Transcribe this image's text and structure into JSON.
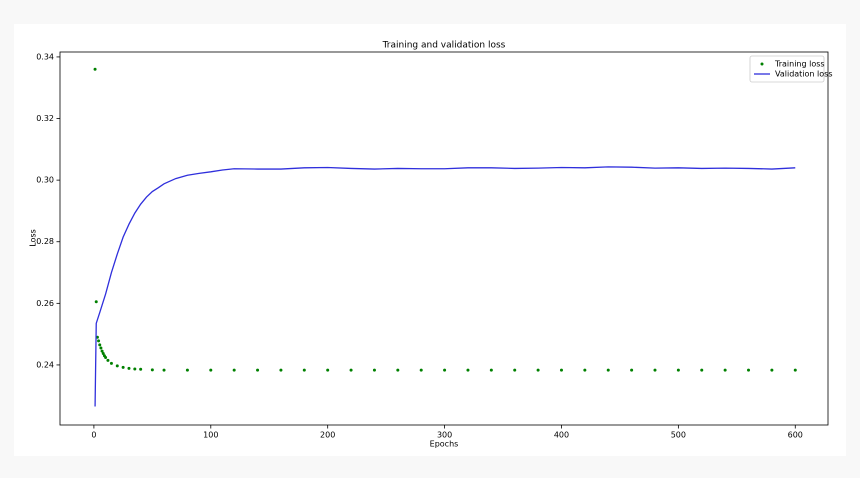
{
  "chart_data": {
    "type": "line-scatter",
    "title": "Training and validation loss",
    "x_label": "Epochs",
    "y_label": "Loss",
    "xlim": [
      -29,
      628
    ],
    "ylim": [
      0.2205,
      0.3416
    ],
    "xticks": [
      0,
      100,
      200,
      300,
      400,
      500,
      600
    ],
    "yticks": [
      0.24,
      0.26,
      0.28,
      {
        "value": 0.3,
        "label": "0.30"
      },
      0.32,
      0.34
    ],
    "legend": "upper right",
    "series": [
      {
        "name": "Training loss",
        "style": "dots",
        "color": "#008000",
        "x": [
          1,
          2,
          3,
          4,
          5,
          6,
          7,
          8,
          9,
          10,
          12,
          15,
          20,
          25,
          30,
          35,
          40,
          50,
          60,
          80,
          100,
          120,
          140,
          160,
          180,
          200,
          220,
          240,
          260,
          280,
          300,
          320,
          340,
          360,
          380,
          400,
          420,
          440,
          460,
          480,
          500,
          520,
          540,
          560,
          580,
          600
        ],
        "values": [
          0.336,
          0.2605,
          0.249,
          0.2478,
          0.2465,
          0.2455,
          0.2445,
          0.2437,
          0.243,
          0.2424,
          0.2415,
          0.2405,
          0.2397,
          0.2392,
          0.2389,
          0.2387,
          0.2386,
          0.2384,
          0.2383,
          0.2383,
          0.2383,
          0.2383,
          0.2383,
          0.2383,
          0.2383,
          0.2383,
          0.2383,
          0.2383,
          0.2383,
          0.2383,
          0.2383,
          0.2383,
          0.2383,
          0.2383,
          0.2383,
          0.2383,
          0.2383,
          0.2383,
          0.2383,
          0.2383,
          0.2383,
          0.2383,
          0.2383,
          0.2383,
          0.2383,
          0.2383
        ]
      },
      {
        "name": "Validation loss",
        "style": "line",
        "color": "#2f2fdc",
        "x": [
          1,
          2,
          5,
          10,
          15,
          20,
          25,
          30,
          35,
          40,
          45,
          50,
          55,
          60,
          70,
          80,
          90,
          100,
          110,
          120,
          140,
          160,
          180,
          200,
          220,
          240,
          260,
          280,
          300,
          320,
          340,
          360,
          380,
          400,
          420,
          440,
          460,
          480,
          500,
          520,
          540,
          560,
          580,
          600
        ],
        "values": [
          0.2265,
          0.2535,
          0.257,
          0.263,
          0.27,
          0.276,
          0.2815,
          0.2857,
          0.2893,
          0.2922,
          0.2945,
          0.2963,
          0.2975,
          0.2988,
          0.3005,
          0.3016,
          0.3022,
          0.3027,
          0.3033,
          0.3037,
          0.3036,
          0.3036,
          0.304,
          0.3041,
          0.3038,
          0.3036,
          0.3038,
          0.3037,
          0.3037,
          0.304,
          0.304,
          0.3038,
          0.3039,
          0.3041,
          0.304,
          0.3043,
          0.3042,
          0.3039,
          0.304,
          0.3038,
          0.3039,
          0.3038,
          0.3036,
          0.304
        ]
      }
    ]
  }
}
